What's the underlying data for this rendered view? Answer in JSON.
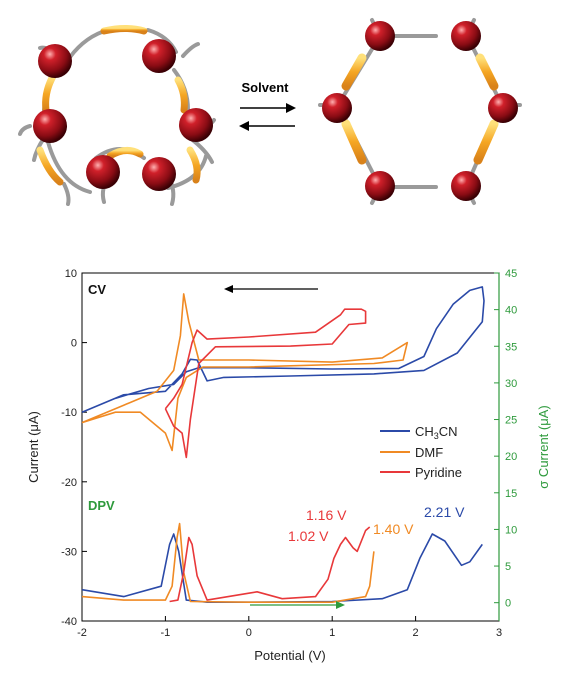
{
  "schematic": {
    "solvent_label": "Solvent"
  },
  "chart_data": {
    "type": "line",
    "xlabel": "Potential (V)",
    "ylabel": "Current (μA)",
    "y2label": "σ Current (μA)",
    "xlim": [
      -2,
      3
    ],
    "ylim": [
      -40,
      10
    ],
    "y2lim": [
      -2.5,
      45
    ],
    "xticks": [
      "-2",
      "-1",
      "0",
      "1",
      "2",
      "3"
    ],
    "yticks": [
      "10",
      "0",
      "-10",
      "-20",
      "-30",
      "-40"
    ],
    "y2ticks": [
      "45",
      "40",
      "35",
      "30",
      "25",
      "20",
      "15",
      "10",
      "5",
      "0"
    ],
    "panel_labels": {
      "cv": "CV",
      "dpv": "DPV"
    },
    "annotations": [
      "1.16 V",
      "1.02 V",
      "1.40 V",
      "2.21 V"
    ],
    "legend": {
      "position": "right",
      "entries": [
        {
          "label_main": "CH",
          "label_sub": "3",
          "label_rest": "CN",
          "color": "#2b4aa8"
        },
        {
          "label_main": "DMF",
          "label_sub": "",
          "label_rest": "",
          "color": "#f08a24"
        },
        {
          "label_main": "Pyridine",
          "label_sub": "",
          "label_rest": "",
          "color": "#e8383a"
        }
      ]
    },
    "colors": {
      "axis_right": "#2e9a3c",
      "cv_arrow": "#000000",
      "dpv_arrow": "#2e9a3c"
    },
    "series": [
      {
        "name": "CH3CN",
        "kind": "CV",
        "color": "#2b4aa8",
        "points": [
          [
            -2,
            -10
          ],
          [
            -1.6,
            -8
          ],
          [
            -1.2,
            -6.6
          ],
          [
            -0.9,
            -6
          ],
          [
            -0.75,
            -4.2
          ],
          [
            -0.6,
            -3.6
          ],
          [
            0,
            -3.6
          ],
          [
            1,
            -3.8
          ],
          [
            1.8,
            -3.7
          ],
          [
            2.1,
            -2
          ],
          [
            2.25,
            2
          ],
          [
            2.45,
            5.5
          ],
          [
            2.65,
            7.5
          ],
          [
            2.8,
            8
          ],
          [
            2.82,
            6
          ],
          [
            2.8,
            3
          ],
          [
            2.5,
            -1.5
          ],
          [
            2.1,
            -4
          ],
          [
            1.5,
            -4.5
          ],
          [
            0.5,
            -4.8
          ],
          [
            -0.3,
            -5
          ],
          [
            -0.5,
            -5.5
          ],
          [
            -0.62,
            -2.5
          ],
          [
            -0.7,
            -2.4
          ],
          [
            -0.8,
            -4.5
          ],
          [
            -1,
            -7
          ],
          [
            -1.5,
            -7.5
          ],
          [
            -2,
            -10
          ]
        ]
      },
      {
        "name": "DMF",
        "kind": "CV",
        "color": "#f08a24",
        "points": [
          [
            -2,
            -11.5
          ],
          [
            -1.5,
            -9
          ],
          [
            -1.1,
            -7
          ],
          [
            -0.9,
            -4
          ],
          [
            -0.82,
            1
          ],
          [
            -0.78,
            7
          ],
          [
            -0.72,
            3
          ],
          [
            -0.6,
            -2.5
          ],
          [
            0,
            -2.5
          ],
          [
            1,
            -2.8
          ],
          [
            1.6,
            -2.2
          ],
          [
            1.9,
            0
          ],
          [
            1.85,
            -2.5
          ],
          [
            1.5,
            -3
          ],
          [
            0,
            -3.5
          ],
          [
            -0.55,
            -3.5
          ],
          [
            -0.75,
            -5
          ],
          [
            -0.85,
            -8
          ],
          [
            -0.92,
            -15.5
          ],
          [
            -1,
            -13
          ],
          [
            -1.3,
            -10
          ],
          [
            -1.6,
            -10
          ],
          [
            -2,
            -11.5
          ]
        ]
      },
      {
        "name": "Pyridine",
        "kind": "CV",
        "color": "#e8383a",
        "points": [
          [
            -1,
            -9.5
          ],
          [
            -0.9,
            -8
          ],
          [
            -0.8,
            -6
          ],
          [
            -0.68,
            0
          ],
          [
            -0.62,
            1.8
          ],
          [
            -0.5,
            0.5
          ],
          [
            0,
            0.8
          ],
          [
            0.8,
            1.5
          ],
          [
            1.1,
            4
          ],
          [
            1.15,
            4.8
          ],
          [
            1.35,
            4.8
          ],
          [
            1.4,
            4.5
          ],
          [
            1.4,
            2.8
          ],
          [
            1.2,
            2.6
          ],
          [
            1,
            -0.2
          ],
          [
            0.5,
            -0.5
          ],
          [
            -0.4,
            -0.6
          ],
          [
            -0.6,
            -3
          ],
          [
            -0.7,
            -11
          ],
          [
            -0.75,
            -16.5
          ],
          [
            -0.8,
            -13
          ],
          [
            -0.9,
            -12
          ],
          [
            -1,
            -9.5
          ]
        ]
      },
      {
        "name": "CH3CN",
        "kind": "DPV",
        "color": "#2b4aa8",
        "points": [
          [
            -2,
            -35.5
          ],
          [
            -1.5,
            -36.5
          ],
          [
            -1.05,
            -35
          ],
          [
            -0.95,
            -29
          ],
          [
            -0.9,
            -27.5
          ],
          [
            -0.84,
            -30
          ],
          [
            -0.75,
            -37
          ],
          [
            -0.5,
            -37.3
          ],
          [
            0,
            -37.3
          ],
          [
            1,
            -37.2
          ],
          [
            1.6,
            -36.8
          ],
          [
            1.9,
            -35.5
          ],
          [
            2.05,
            -31
          ],
          [
            2.2,
            -27.5
          ],
          [
            2.35,
            -28.5
          ],
          [
            2.55,
            -32
          ],
          [
            2.65,
            -31.5
          ],
          [
            2.8,
            -29
          ]
        ]
      },
      {
        "name": "DMF",
        "kind": "DPV",
        "color": "#f08a24",
        "points": [
          [
            -2,
            -36.5
          ],
          [
            -1.5,
            -37
          ],
          [
            -1,
            -37
          ],
          [
            -0.92,
            -35
          ],
          [
            -0.86,
            -28
          ],
          [
            -0.83,
            -26
          ],
          [
            -0.78,
            -33
          ],
          [
            -0.7,
            -37.2
          ],
          [
            0,
            -37.3
          ],
          [
            1,
            -37.3
          ],
          [
            1.4,
            -36.5
          ],
          [
            1.45,
            -35
          ],
          [
            1.5,
            -30
          ]
        ]
      },
      {
        "name": "Pyridine",
        "kind": "DPV",
        "color": "#e8383a",
        "points": [
          [
            -0.95,
            -37.2
          ],
          [
            -0.85,
            -37
          ],
          [
            -0.78,
            -33
          ],
          [
            -0.72,
            -28
          ],
          [
            -0.68,
            -29
          ],
          [
            -0.62,
            -33.5
          ],
          [
            -0.5,
            -37
          ],
          [
            0,
            -36
          ],
          [
            0.1,
            -35.8
          ],
          [
            0.4,
            -36.8
          ],
          [
            0.8,
            -36.5
          ],
          [
            0.95,
            -34
          ],
          [
            1.02,
            -31
          ],
          [
            1.1,
            -29
          ],
          [
            1.16,
            -28
          ],
          [
            1.25,
            -29.5
          ],
          [
            1.3,
            -30
          ],
          [
            1.4,
            -27
          ],
          [
            1.45,
            -26.5
          ]
        ]
      }
    ]
  }
}
